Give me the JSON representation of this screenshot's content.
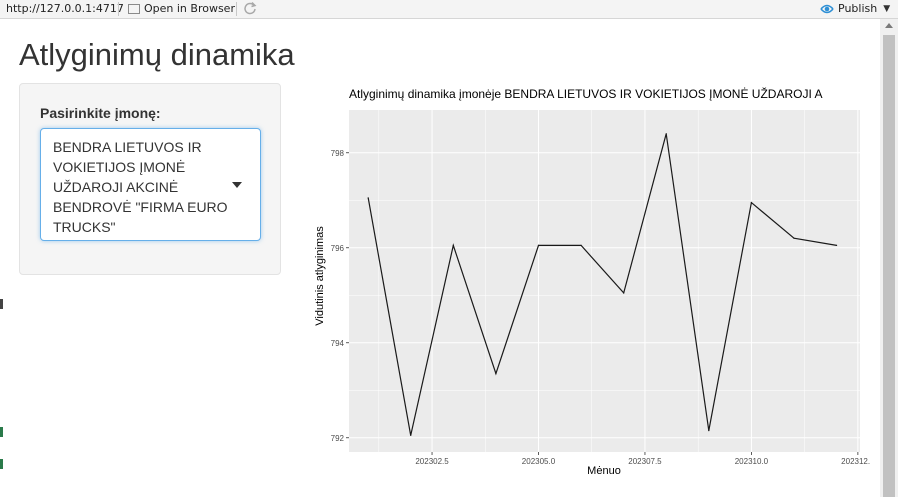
{
  "toolbar": {
    "url": "http://127.0.0.1:4717",
    "open_in_browser": "Open in Browser",
    "publish": "Publish"
  },
  "app": {
    "title": "Atlyginimų dinamika"
  },
  "sidebar": {
    "select_label": "Pasirinkite įmonę:",
    "selected_company": "BENDRA LIETUVOS IR VOKIETIJOS ĮMONĖ UŽDAROJI AKCINĖ BENDROVĖ \"FIRMA EURO TRUCKS\""
  },
  "colors": {
    "panel_bg": "#ebebeb",
    "grid": "#ffffff",
    "line": "#1a1a1a",
    "select_border": "#66afe9",
    "publish_icon": "#2d8fd5"
  },
  "chart_data": {
    "type": "line",
    "title": "Atlyginimų dinamika įmonėje BENDRA LIETUVOS IR VOKIETIJOS ĮMONĖ UŽDAROJI A",
    "xlabel": "Mėnuo",
    "ylabel": "Vidutinis atlyginimas",
    "x": [
      202301,
      202302,
      202303,
      202304,
      202305,
      202306,
      202307,
      202308,
      202309,
      202310,
      202311,
      202312
    ],
    "y": [
      797.05,
      792.05,
      796.05,
      793.35,
      796.05,
      796.05,
      795.05,
      798.4,
      792.15,
      796.95,
      796.2,
      796.05
    ],
    "xlim": [
      202300.55,
      202312.55
    ],
    "ylim": [
      791.7,
      798.9
    ],
    "x_ticks": [
      202302.5,
      202305.0,
      202307.5,
      202310.0,
      202312.5
    ],
    "x_tick_labels": [
      "202302.5",
      "202305.0",
      "202307.5",
      "202310.0",
      "202312.5"
    ],
    "y_ticks": [
      792,
      794,
      796,
      798
    ],
    "y_tick_labels": [
      "792",
      "794",
      "796",
      "798"
    ],
    "grid": true,
    "legend": "none"
  }
}
